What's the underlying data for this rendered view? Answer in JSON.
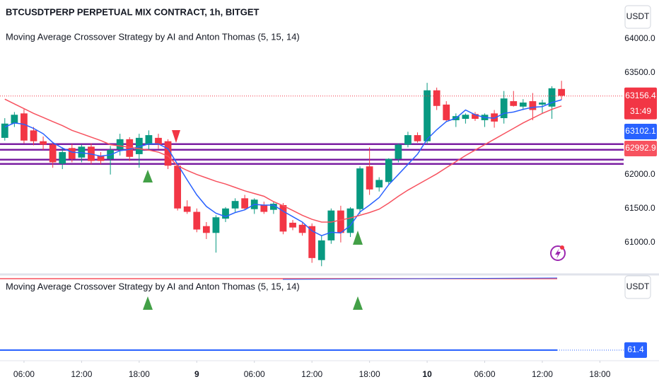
{
  "chart_data": {
    "type": "candlestick",
    "title": "BTCUSDTPERP PERPETUAL MIX CONTRACT, 1h, BITGET",
    "subtitle": "Moving Average Crossover Strategy by AI and Anton Thomas (5, 15, 14)",
    "currency": "USDT",
    "up_color": "#089981",
    "down_color": "#f23645",
    "candles": {
      "open": [
        62540,
        62750,
        62900,
        62650,
        62490,
        62440,
        62160,
        62390,
        62250,
        62410,
        62280,
        62230,
        62370,
        62520,
        62300,
        62440,
        62540,
        62490,
        62130,
        61530,
        61450,
        61240,
        61140,
        61350,
        61500,
        61650,
        61490,
        61550,
        61480,
        61550,
        61290,
        61260,
        61240,
        60740,
        61030,
        61470,
        61140,
        61490,
        62120,
        61810,
        61890,
        62230,
        62440,
        62580,
        62490,
        63240,
        63030,
        62800,
        62820,
        62890,
        62800,
        62900,
        62830,
        63080,
        63000,
        63080,
        63030,
        63000,
        63260
      ],
      "high": [
        62830,
        62920,
        62960,
        62700,
        62560,
        62480,
        62400,
        62450,
        62440,
        62460,
        62330,
        62420,
        62600,
        62550,
        62600,
        62650,
        62600,
        62520,
        62150,
        61620,
        61500,
        61300,
        61400,
        61520,
        61650,
        61700,
        61650,
        61600,
        61600,
        61580,
        61330,
        61290,
        61280,
        61100,
        61500,
        61540,
        61520,
        62120,
        62400,
        61960,
        62240,
        62460,
        62630,
        62620,
        63350,
        63280,
        63080,
        62900,
        62900,
        62920,
        62900,
        62950,
        63230,
        63230,
        63110,
        63200,
        63100,
        63300,
        63380
      ],
      "low": [
        62500,
        62700,
        62460,
        62430,
        62360,
        62100,
        62080,
        62180,
        62180,
        62150,
        62150,
        62000,
        62280,
        62200,
        62100,
        62350,
        62380,
        62080,
        61470,
        61420,
        61150,
        61050,
        60850,
        61300,
        61450,
        61480,
        61420,
        61420,
        61420,
        61120,
        61180,
        61100,
        60700,
        60650,
        60980,
        61000,
        61080,
        61420,
        61700,
        61750,
        61850,
        62180,
        62400,
        62470,
        62450,
        62950,
        62780,
        62700,
        62750,
        62790,
        62700,
        62690,
        62750,
        63000,
        62950,
        62800,
        62900,
        62820,
        63100
      ],
      "close": [
        62750,
        62880,
        62500,
        62490,
        62440,
        62180,
        62330,
        62230,
        62410,
        62200,
        62200,
        62360,
        62520,
        62260,
        62540,
        62580,
        62440,
        62130,
        61500,
        61450,
        61190,
        61140,
        61370,
        61500,
        61610,
        61500,
        61630,
        61450,
        61570,
        61160,
        61220,
        61140,
        60770,
        61030,
        61470,
        61140,
        61500,
        62090,
        61780,
        61920,
        62230,
        62440,
        62580,
        62490,
        63240,
        63010,
        62800,
        62860,
        62880,
        62820,
        62880,
        62780,
        63120,
        63010,
        63060,
        62950,
        63060,
        63270,
        63160
      ]
    },
    "ma_lines": [
      {
        "color": "#2962ff",
        "values": [
          62700,
          62760,
          62740,
          62680,
          62600,
          62470,
          62390,
          62330,
          62320,
          62300,
          62270,
          62290,
          62350,
          62370,
          62410,
          62450,
          62450,
          62380,
          62150,
          61920,
          61700,
          61530,
          61430,
          61380,
          61440,
          61480,
          61560,
          61550,
          61550,
          61460,
          61380,
          61300,
          61170,
          61100,
          61150,
          61140,
          61250,
          61450,
          61550,
          61660,
          61850,
          62000,
          62150,
          62300,
          62520,
          62660,
          62780,
          62830,
          62950,
          62880,
          62840,
          62830,
          62900,
          62920,
          62960,
          62990,
          63000,
          63060,
          63100
        ]
      },
      {
        "color": "#f7525f",
        "values": [
          63110,
          63040,
          62970,
          62900,
          62840,
          62780,
          62720,
          62650,
          62600,
          62550,
          62500,
          62440,
          62420,
          62400,
          62380,
          62360,
          62330,
          62270,
          62130,
          62060,
          62000,
          61950,
          61900,
          61860,
          61810,
          61760,
          61720,
          61680,
          61600,
          61540,
          61470,
          61400,
          61340,
          61300,
          61300,
          61330,
          61360,
          61400,
          61440,
          61490,
          61580,
          61680,
          61770,
          61850,
          61930,
          62010,
          62100,
          62190,
          62280,
          62360,
          62440,
          62520,
          62600,
          62680,
          62760,
          62830,
          62900,
          62960,
          63010
        ]
      }
    ],
    "levels": {
      "color": "#7b1fa2",
      "values": [
        62448,
        62365,
        62219,
        62156
      ]
    },
    "last_price": 63156.4,
    "countdown": "31:49",
    "ma_labels": [
      63102.1,
      62992.9
    ],
    "ylim": [
      60560,
      64570
    ],
    "yticks": [
      {
        "value": 64000,
        "label": "64000.0"
      },
      {
        "value": 63500,
        "label": "63500.0"
      },
      {
        "value": 62000,
        "label": "62000.0"
      },
      {
        "value": 61500,
        "label": "61500.0"
      },
      {
        "value": 61000,
        "label": "61000.0"
      }
    ],
    "xlim": [
      -0.5,
      63
    ],
    "xticks": [
      {
        "value": 2,
        "label": "06:00"
      },
      {
        "value": 8,
        "label": "12:00"
      },
      {
        "value": 14,
        "label": "18:00"
      },
      {
        "value": 20,
        "label": "9"
      },
      {
        "value": 26,
        "label": "06:00"
      },
      {
        "value": 32,
        "label": "12:00"
      },
      {
        "value": 38,
        "label": "18:00"
      },
      {
        "value": 44,
        "label": "10"
      },
      {
        "value": 50,
        "label": "06:00"
      },
      {
        "value": 56,
        "label": "12:00"
      },
      {
        "value": 62,
        "label": "18:00"
      }
    ],
    "lower_pane": {
      "title": "Moving Average Crossover Strategy by AI and Anton Thomas (5, 15, 14)",
      "currency": "USDT",
      "value": 61.4
    }
  }
}
